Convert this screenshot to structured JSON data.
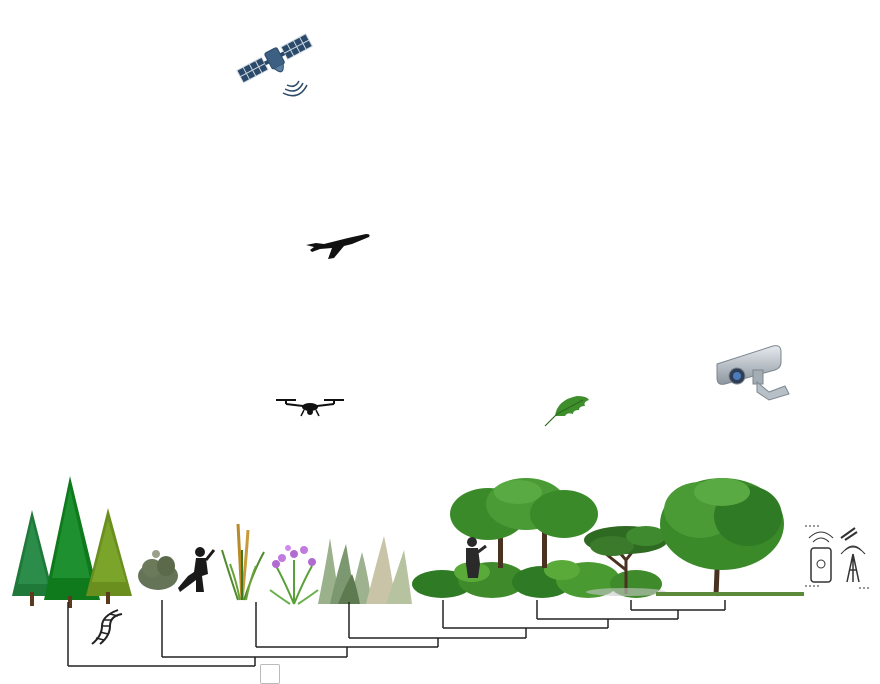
{
  "scene": {
    "background_color": "#ffffff",
    "caption": ""
  },
  "sensors": [
    {
      "name": "satellite",
      "icon": "satellite-icon",
      "color": "#2b4a6a"
    },
    {
      "name": "airplane",
      "icon": "airplane-icon",
      "color": "#111111"
    },
    {
      "name": "drone",
      "icon": "drone-icon",
      "color": "#111111"
    },
    {
      "name": "leaf",
      "icon": "leaf-icon",
      "color": "#3e8e2c"
    },
    {
      "name": "camera",
      "icon": "security-camera-icon",
      "color": "#9aa3ab"
    },
    {
      "name": "iot",
      "icon": "iot-tower-phone-icon",
      "color": "#333333"
    }
  ],
  "vegetation": [
    {
      "icon": "conifer-trees-icon"
    },
    {
      "icon": "dna-icon"
    },
    {
      "icon": "shrub-icon"
    },
    {
      "icon": "person-kneeling-icon"
    },
    {
      "icon": "tall-grass-icon"
    },
    {
      "icon": "flowering-plant-icon"
    },
    {
      "icon": "grass-tufts-icon"
    },
    {
      "icon": "person-silhouette-icon"
    },
    {
      "icon": "hedge-bushes-icon"
    },
    {
      "icon": "broadleaf-tree-icon"
    },
    {
      "icon": "acacia-tree-icon"
    },
    {
      "icon": "oak-tree-icon"
    }
  ],
  "colors": {
    "tree_dark": "#1f7a3a",
    "tree_mid": "#2e8b2e",
    "tree_light": "#6b8f1f",
    "bush": "#3f8a2a",
    "dendrogram": "#222222"
  }
}
